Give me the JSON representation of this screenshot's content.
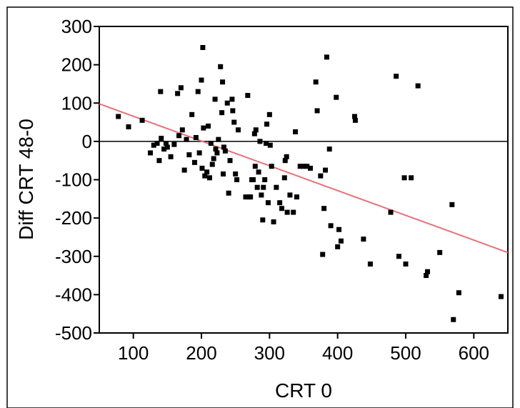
{
  "chart_data": {
    "type": "scatter",
    "title": "",
    "xlabel": "CRT 0",
    "ylabel": "Diff CRT 48-0",
    "xlim": [
      50,
      650
    ],
    "ylim": [
      -500,
      300
    ],
    "x_ticks": [
      100,
      200,
      300,
      400,
      500,
      600
    ],
    "y_ticks": [
      300,
      200,
      100,
      0,
      -100,
      -200,
      -300,
      -400,
      -500
    ],
    "grid": false,
    "legend": "none",
    "point_color": "#000000",
    "reference_line": {
      "y": 0,
      "color": "#000000"
    },
    "fit_line": {
      "color": "#e8707a",
      "start": [
        50,
        98
      ],
      "end": [
        650,
        -290
      ]
    },
    "points": [
      {
        "x": 78,
        "y": 65
      },
      {
        "x": 93,
        "y": 38
      },
      {
        "x": 113,
        "y": 55
      },
      {
        "x": 125,
        "y": -30
      },
      {
        "x": 130,
        "y": -10
      },
      {
        "x": 135,
        "y": -5
      },
      {
        "x": 138,
        "y": -50
      },
      {
        "x": 140,
        "y": 130
      },
      {
        "x": 141,
        "y": 8
      },
      {
        "x": 145,
        "y": -20
      },
      {
        "x": 148,
        "y": -5
      },
      {
        "x": 150,
        "y": -15
      },
      {
        "x": 155,
        "y": -40
      },
      {
        "x": 160,
        "y": -8
      },
      {
        "x": 165,
        "y": 125
      },
      {
        "x": 167,
        "y": 15
      },
      {
        "x": 170,
        "y": 140
      },
      {
        "x": 172,
        "y": 30
      },
      {
        "x": 175,
        "y": -75
      },
      {
        "x": 178,
        "y": 5
      },
      {
        "x": 182,
        "y": -35
      },
      {
        "x": 186,
        "y": 70
      },
      {
        "x": 190,
        "y": -55
      },
      {
        "x": 192,
        "y": 10
      },
      {
        "x": 195,
        "y": 130
      },
      {
        "x": 197,
        "y": -30
      },
      {
        "x": 200,
        "y": 160
      },
      {
        "x": 201,
        "y": -70
      },
      {
        "x": 202,
        "y": 245
      },
      {
        "x": 203,
        "y": 35
      },
      {
        "x": 205,
        "y": -90
      },
      {
        "x": 208,
        "y": -80
      },
      {
        "x": 210,
        "y": 40
      },
      {
        "x": 212,
        "y": -95
      },
      {
        "x": 214,
        "y": -5
      },
      {
        "x": 216,
        "y": -60
      },
      {
        "x": 218,
        "y": -45
      },
      {
        "x": 220,
        "y": 110
      },
      {
        "x": 221,
        "y": -20
      },
      {
        "x": 223,
        "y": -30
      },
      {
        "x": 225,
        "y": 5
      },
      {
        "x": 228,
        "y": 195
      },
      {
        "x": 230,
        "y": 75
      },
      {
        "x": 231,
        "y": 155
      },
      {
        "x": 232,
        "y": -85
      },
      {
        "x": 233,
        "y": -15
      },
      {
        "x": 235,
        "y": -25
      },
      {
        "x": 238,
        "y": 100
      },
      {
        "x": 240,
        "y": -135
      },
      {
        "x": 242,
        "y": -50
      },
      {
        "x": 245,
        "y": 110
      },
      {
        "x": 246,
        "y": 80
      },
      {
        "x": 248,
        "y": 50
      },
      {
        "x": 250,
        "y": -85
      },
      {
        "x": 252,
        "y": -100
      },
      {
        "x": 254,
        "y": 30
      },
      {
        "x": 265,
        "y": -145
      },
      {
        "x": 268,
        "y": 120
      },
      {
        "x": 270,
        "y": -145
      },
      {
        "x": 272,
        "y": -145
      },
      {
        "x": 274,
        "y": -100
      },
      {
        "x": 276,
        "y": -100
      },
      {
        "x": 278,
        "y": 20
      },
      {
        "x": 279,
        "y": -65
      },
      {
        "x": 280,
        "y": 30
      },
      {
        "x": 282,
        "y": -120
      },
      {
        "x": 284,
        "y": -80
      },
      {
        "x": 286,
        "y": 0
      },
      {
        "x": 288,
        "y": -140
      },
      {
        "x": 290,
        "y": -205
      },
      {
        "x": 291,
        "y": -120
      },
      {
        "x": 293,
        "y": -100
      },
      {
        "x": 295,
        "y": -5
      },
      {
        "x": 296,
        "y": 45
      },
      {
        "x": 298,
        "y": -160
      },
      {
        "x": 300,
        "y": 70
      },
      {
        "x": 301,
        "y": -10
      },
      {
        "x": 303,
        "y": -65
      },
      {
        "x": 306,
        "y": -210
      },
      {
        "x": 310,
        "y": -120
      },
      {
        "x": 315,
        "y": -160
      },
      {
        "x": 318,
        "y": -175
      },
      {
        "x": 322,
        "y": -95
      },
      {
        "x": 323,
        "y": -50
      },
      {
        "x": 325,
        "y": -40
      },
      {
        "x": 326,
        "y": -185
      },
      {
        "x": 330,
        "y": -140
      },
      {
        "x": 335,
        "y": -185
      },
      {
        "x": 338,
        "y": 25
      },
      {
        "x": 340,
        "y": -145
      },
      {
        "x": 345,
        "y": -65
      },
      {
        "x": 350,
        "y": -65
      },
      {
        "x": 355,
        "y": -65
      },
      {
        "x": 360,
        "y": -70
      },
      {
        "x": 368,
        "y": 155
      },
      {
        "x": 370,
        "y": 80
      },
      {
        "x": 375,
        "y": -90
      },
      {
        "x": 378,
        "y": -295
      },
      {
        "x": 380,
        "y": -175
      },
      {
        "x": 382,
        "y": -75
      },
      {
        "x": 384,
        "y": 220
      },
      {
        "x": 388,
        "y": -20
      },
      {
        "x": 390,
        "y": -220
      },
      {
        "x": 398,
        "y": 115
      },
      {
        "x": 400,
        "y": -275
      },
      {
        "x": 402,
        "y": -230
      },
      {
        "x": 405,
        "y": -260
      },
      {
        "x": 425,
        "y": 65
      },
      {
        "x": 426,
        "y": 55
      },
      {
        "x": 438,
        "y": -255
      },
      {
        "x": 448,
        "y": -320
      },
      {
        "x": 478,
        "y": -185
      },
      {
        "x": 486,
        "y": 170
      },
      {
        "x": 490,
        "y": -300
      },
      {
        "x": 498,
        "y": -95
      },
      {
        "x": 500,
        "y": -320
      },
      {
        "x": 508,
        "y": -95
      },
      {
        "x": 518,
        "y": 145
      },
      {
        "x": 530,
        "y": -350
      },
      {
        "x": 532,
        "y": -340
      },
      {
        "x": 550,
        "y": -290
      },
      {
        "x": 568,
        "y": -165
      },
      {
        "x": 570,
        "y": -465
      },
      {
        "x": 578,
        "y": -395
      },
      {
        "x": 640,
        "y": -405
      }
    ]
  }
}
